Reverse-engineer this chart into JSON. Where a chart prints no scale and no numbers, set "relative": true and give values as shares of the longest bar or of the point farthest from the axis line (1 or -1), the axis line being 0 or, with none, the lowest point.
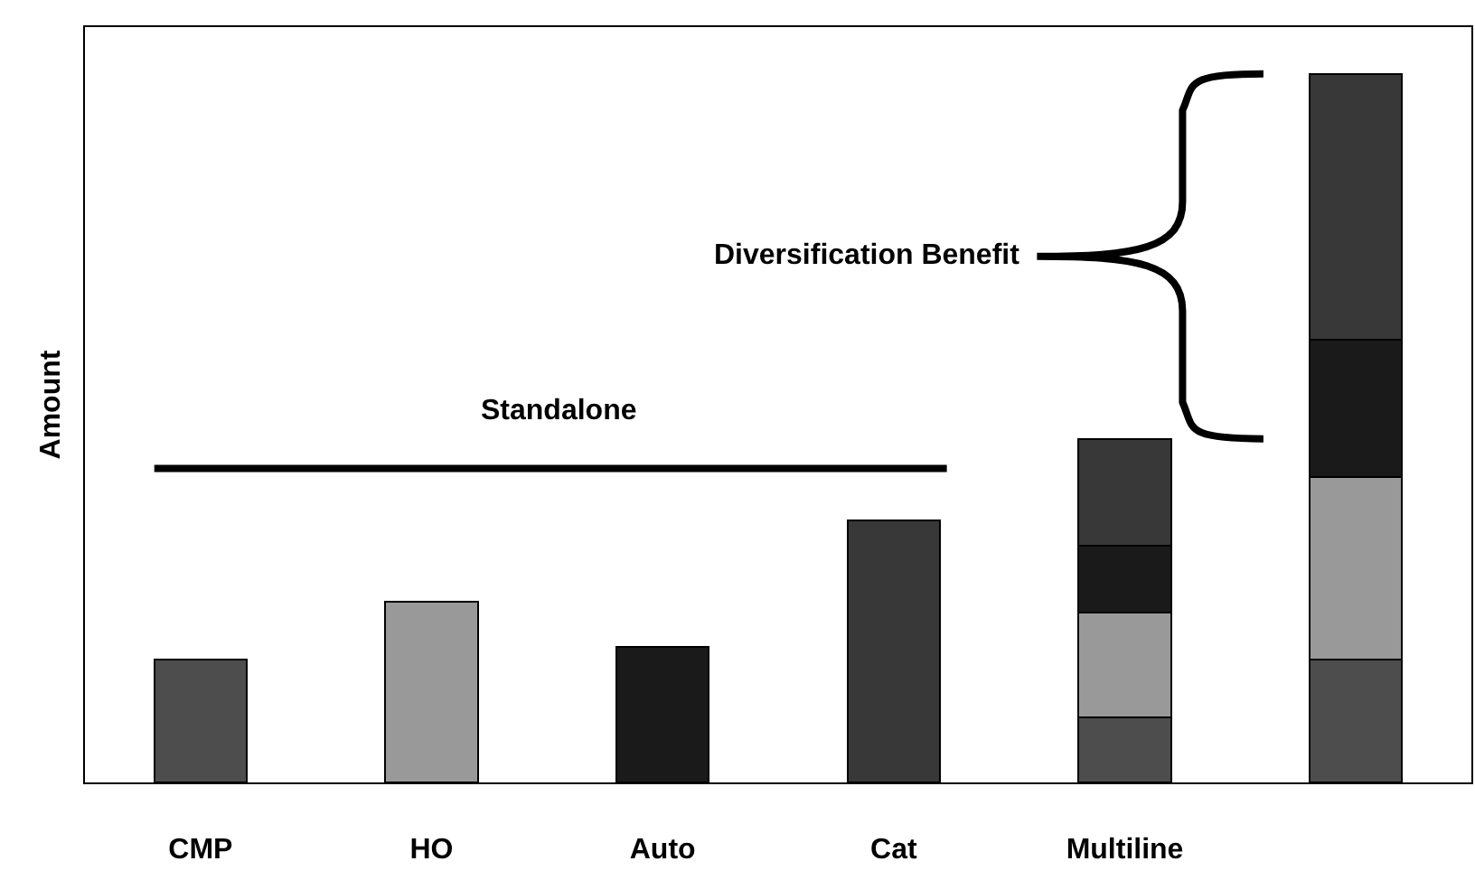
{
  "chart_data": {
    "type": "bar",
    "stacked": true,
    "relative": true,
    "ylabel": "Amount",
    "categories": [
      "CMP",
      "HO",
      "Auto",
      "Cat",
      "Multiline",
      null
    ],
    "series": [
      {
        "color": "#4d4d4d",
        "values": [
          0.173,
          null,
          null,
          null,
          0.092,
          0.173
        ]
      },
      {
        "color": "#999999",
        "values": [
          null,
          0.255,
          null,
          null,
          0.148,
          0.258
        ]
      },
      {
        "color": "#1a1a1a",
        "values": [
          null,
          null,
          0.191,
          null,
          0.094,
          0.194
        ]
      },
      {
        "color": "#383838",
        "values": [
          null,
          null,
          null,
          0.37,
          0.151,
          0.375
        ]
      }
    ],
    "annotations": [
      "Diversification Benefit"
    ],
    "ref_lines": [
      {
        "axis": "y",
        "value": 0.443,
        "label": "Standalone",
        "color": "#000000"
      }
    ],
    "legend": false
  }
}
